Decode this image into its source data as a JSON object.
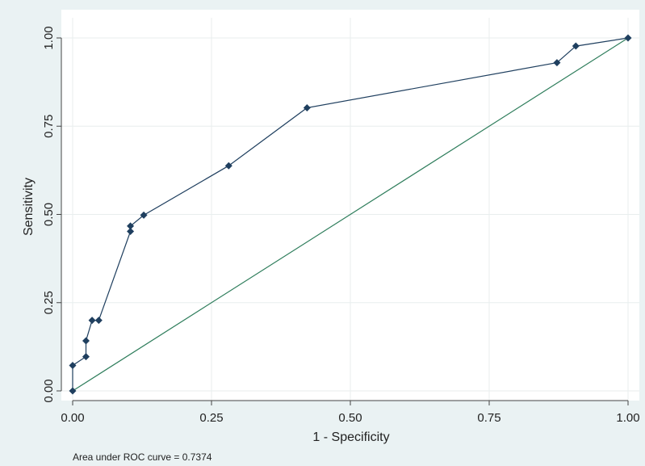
{
  "chart_data": {
    "type": "line",
    "title": "",
    "xlabel": "1 - Specificity",
    "ylabel": "Sensitivity",
    "xlim": [
      0,
      1
    ],
    "ylim": [
      0,
      1
    ],
    "x_ticks": [
      "0.00",
      "0.25",
      "0.50",
      "0.75",
      "1.00"
    ],
    "y_ticks": [
      "0.00",
      "0.25",
      "0.50",
      "0.75",
      "1.00"
    ],
    "grid": true,
    "note": "Area under ROC curve = 0.7374",
    "series": [
      {
        "x": [
          0.0,
          0.0,
          0.024,
          0.024,
          0.035,
          0.047,
          0.104,
          0.104,
          0.128,
          0.281,
          0.422,
          0.872,
          0.906,
          1.0
        ],
        "y": [
          0.0,
          0.072,
          0.097,
          0.142,
          0.2,
          0.2,
          0.452,
          0.467,
          0.498,
          0.638,
          0.802,
          0.93,
          0.977,
          1.0
        ],
        "color": "#1f3f5f",
        "marker": "diamond"
      },
      {
        "x": [
          0,
          1
        ],
        "y": [
          0,
          1
        ],
        "color": "#2e7d5b",
        "marker": "none"
      }
    ]
  },
  "colors": {
    "background": "#eaf2f3",
    "plot_area": "#ffffff",
    "grid": "#e8eeee",
    "axis": "#444444"
  }
}
